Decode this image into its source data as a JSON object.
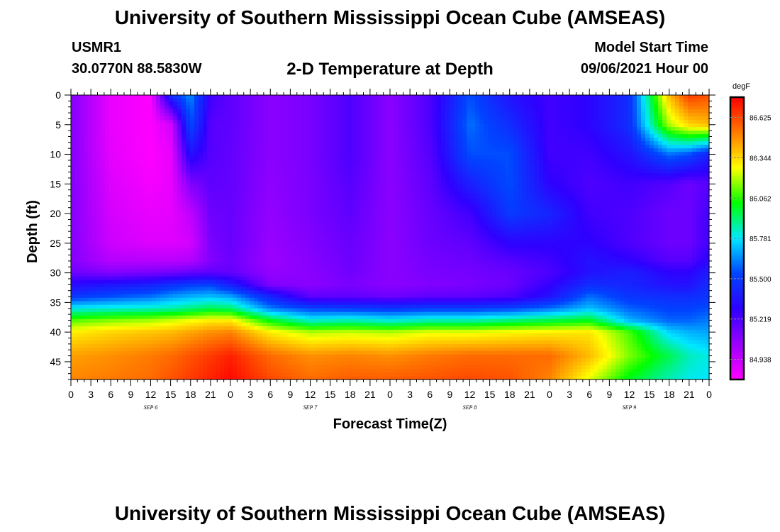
{
  "header": {
    "title": "University of Southern Mississippi Ocean Cube (AMSEAS)",
    "station_id": "USMR1",
    "station_location": "30.0770N  88.5830W",
    "plot_title": "2-D Temperature at Depth",
    "model_start_label": "Model Start Time",
    "model_start_value": "09/06/2021 Hour 00"
  },
  "footer": {
    "title": "University of Southern Mississippi Ocean Cube (AMSEAS)"
  },
  "colors": {
    "scale": [
      "#ff00ff",
      "#9b00ff",
      "#2f00ff",
      "#0044ff",
      "#00e8ff",
      "#00ff00",
      "#ffff00",
      "#ff7a00",
      "#ff0000"
    ]
  },
  "chart_data": {
    "type": "heatmap",
    "xlabel": "Forecast Time(Z)",
    "ylabel": "Depth (ft)",
    "x_range_hours": [
      0,
      96
    ],
    "ylim": [
      0,
      48
    ],
    "y_ticks": [
      "0",
      "5",
      "10",
      "15",
      "20",
      "25",
      "30",
      "35",
      "40",
      "45"
    ],
    "x_ticks": [
      "0",
      "3",
      "6",
      "9",
      "12",
      "15",
      "18",
      "21",
      "0",
      "3",
      "6",
      "9",
      "12",
      "15",
      "18",
      "21",
      "0",
      "3",
      "6",
      "9",
      "12",
      "15",
      "18",
      "21",
      "0",
      "3",
      "6",
      "9",
      "12",
      "15",
      "18",
      "21",
      "0"
    ],
    "day_labels": [
      {
        "hour": 12,
        "label": "SEP 6"
      },
      {
        "hour": 36,
        "label": "SEP 7"
      },
      {
        "hour": 60,
        "label": "SEP 8"
      },
      {
        "hour": 84,
        "label": "SEP 9"
      }
    ],
    "colorbar": {
      "unit": "degF",
      "range": [
        84.797,
        86.766
      ],
      "ticks": [
        "86.625",
        "86.344",
        "86.062",
        "85.781",
        "85.500",
        "85.219",
        "84.938"
      ]
    },
    "hours": [
      0,
      6,
      12,
      15,
      18,
      21,
      24,
      30,
      36,
      42,
      48,
      54,
      60,
      66,
      72,
      78,
      84,
      90,
      93,
      96
    ],
    "depths": [
      0,
      5,
      10,
      15,
      20,
      25,
      28,
      30,
      32,
      34,
      36,
      38,
      40,
      44,
      48
    ],
    "values": [
      [
        85.1,
        84.85,
        84.8,
        85.45,
        85.65,
        85.25,
        85.18,
        85.08,
        85.12,
        85.22,
        85.08,
        85.22,
        85.55,
        85.35,
        85.25,
        85.3,
        85.45,
        86.4,
        86.65,
        86.6
      ],
      [
        85.1,
        84.85,
        84.8,
        84.9,
        85.55,
        85.2,
        85.18,
        85.08,
        85.12,
        85.22,
        85.08,
        85.22,
        85.6,
        85.45,
        85.25,
        85.3,
        85.45,
        86.2,
        86.35,
        86.4
      ],
      [
        85.1,
        84.86,
        84.8,
        84.85,
        85.35,
        85.2,
        85.17,
        85.08,
        85.12,
        85.22,
        85.08,
        85.2,
        85.55,
        85.55,
        85.25,
        85.25,
        85.35,
        85.6,
        85.55,
        85.4
      ],
      [
        85.1,
        84.88,
        84.82,
        84.85,
        85.1,
        85.18,
        85.17,
        85.07,
        85.12,
        85.2,
        85.08,
        85.18,
        85.4,
        85.55,
        85.3,
        85.22,
        85.25,
        85.2,
        85.15,
        85.2
      ],
      [
        85.1,
        84.9,
        84.85,
        84.86,
        84.95,
        85.15,
        85.16,
        85.06,
        85.12,
        85.18,
        85.08,
        85.16,
        85.25,
        85.5,
        85.42,
        85.25,
        85.22,
        85.15,
        85.15,
        85.25
      ],
      [
        85.1,
        84.92,
        84.88,
        84.88,
        84.9,
        85.12,
        85.16,
        85.05,
        85.1,
        85.16,
        85.08,
        85.15,
        85.18,
        85.3,
        85.3,
        85.3,
        85.22,
        85.15,
        85.15,
        85.25
      ],
      [
        85.1,
        84.98,
        84.98,
        84.97,
        84.99,
        85.1,
        85.15,
        85.04,
        85.09,
        85.15,
        85.08,
        85.13,
        85.15,
        85.2,
        85.25,
        85.35,
        85.3,
        85.2,
        85.2,
        85.32
      ],
      [
        85.15,
        85.1,
        85.12,
        85.14,
        85.17,
        85.18,
        85.17,
        85.06,
        85.08,
        85.14,
        85.08,
        85.12,
        85.13,
        85.16,
        85.22,
        85.35,
        85.4,
        85.3,
        85.3,
        85.4
      ],
      [
        85.32,
        85.36,
        85.4,
        85.46,
        85.5,
        85.52,
        85.4,
        85.1,
        85.08,
        85.12,
        85.08,
        85.1,
        85.12,
        85.15,
        85.28,
        85.45,
        85.42,
        85.35,
        85.35,
        85.45
      ],
      [
        85.48,
        85.55,
        85.6,
        85.66,
        85.7,
        85.72,
        85.68,
        85.42,
        85.18,
        85.18,
        85.15,
        85.18,
        85.18,
        85.22,
        85.35,
        85.6,
        85.48,
        85.45,
        85.45,
        85.48
      ],
      [
        85.8,
        85.82,
        85.84,
        85.86,
        85.9,
        85.95,
        85.92,
        85.62,
        85.52,
        85.5,
        85.48,
        85.5,
        85.5,
        85.52,
        85.6,
        85.72,
        85.58,
        85.52,
        85.52,
        85.55
      ],
      [
        86.1,
        86.15,
        86.18,
        86.22,
        86.26,
        86.3,
        86.3,
        86.0,
        85.82,
        85.85,
        85.8,
        85.85,
        85.85,
        85.9,
        85.95,
        86.0,
        85.7,
        85.58,
        85.58,
        85.62
      ],
      [
        86.3,
        86.35,
        86.38,
        86.4,
        86.44,
        86.48,
        86.5,
        86.3,
        86.2,
        86.22,
        86.2,
        86.25,
        86.25,
        86.28,
        86.3,
        86.32,
        86.1,
        85.75,
        85.7,
        85.68
      ],
      [
        86.45,
        86.48,
        86.52,
        86.55,
        86.6,
        86.65,
        86.7,
        86.55,
        86.48,
        86.5,
        86.48,
        86.52,
        86.55,
        86.55,
        86.55,
        86.4,
        86.15,
        85.95,
        85.85,
        85.8
      ],
      [
        86.5,
        86.52,
        86.55,
        86.6,
        86.65,
        86.7,
        86.75,
        86.62,
        86.55,
        86.58,
        86.58,
        86.6,
        86.62,
        86.6,
        86.5,
        86.25,
        86.0,
        85.85,
        85.8,
        85.78
      ]
    ]
  }
}
